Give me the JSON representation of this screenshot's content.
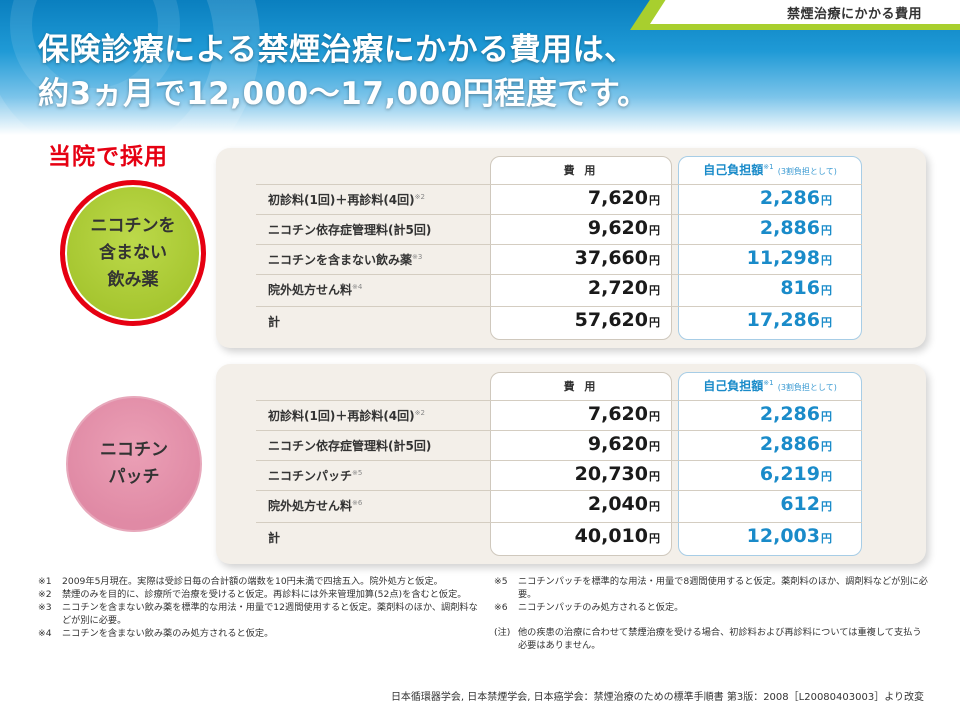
{
  "header": {
    "tag": "禁煙治療にかかる費用",
    "title_line1": "保険診療による禁煙治療にかかる費用は、",
    "title_line2": "約3ヵ月で12,000～17,000円程度です。"
  },
  "adopted_label": "当院で採用",
  "colors": {
    "accent_red": "#e60012",
    "blue": "#1a8bc9",
    "green": "#a6c630",
    "pink": "#e08aa5"
  },
  "tables": [
    {
      "circle_label": "ニコチンを\n含まない\n飲み薬",
      "header_cost": "費 用",
      "header_self": "自己負担額",
      "header_self_note_mark": "※1",
      "header_self_note": "(3割負担として)",
      "unit": "円",
      "rows": [
        {
          "label": "初診料(1回)＋再診料(4回)",
          "note": "※2",
          "cost": "7,620",
          "self": "2,286"
        },
        {
          "label": "ニコチン依存症管理料(計5回)",
          "note": "",
          "cost": "9,620",
          "self": "2,886"
        },
        {
          "label": "ニコチンを含まない飲み薬",
          "note": "※3",
          "cost": "37,660",
          "self": "11,298"
        },
        {
          "label": "院外処方せん料",
          "note": "※4",
          "cost": "2,720",
          "self": "816"
        },
        {
          "label": "計",
          "note": "",
          "cost": "57,620",
          "self": "17,286"
        }
      ]
    },
    {
      "circle_label": "ニコチン\nパッチ",
      "header_cost": "費 用",
      "header_self": "自己負担額",
      "header_self_note_mark": "※1",
      "header_self_note": "(3割負担として)",
      "unit": "円",
      "rows": [
        {
          "label": "初診料(1回)＋再診料(4回)",
          "note": "※2",
          "cost": "7,620",
          "self": "2,286"
        },
        {
          "label": "ニコチン依存症管理料(計5回)",
          "note": "",
          "cost": "9,620",
          "self": "2,886"
        },
        {
          "label": "ニコチンパッチ",
          "note": "※5",
          "cost": "20,730",
          "self": "6,219"
        },
        {
          "label": "院外処方せん料",
          "note": "※6",
          "cost": "2,040",
          "self": "612"
        },
        {
          "label": "計",
          "note": "",
          "cost": "40,010",
          "self": "12,003"
        }
      ]
    }
  ],
  "notes_left": [
    {
      "mark": "※1",
      "text": "2009年5月現在。実際は受診日毎の合計額の端数を10円未満で四捨五入。院外処方と仮定。"
    },
    {
      "mark": "※2",
      "text": "禁煙のみを目的に、診療所で治療を受けると仮定。再診料には外来管理加算(52点)を含むと仮定。"
    },
    {
      "mark": "※3",
      "text": "ニコチンを含まない飲み薬を標準的な用法・用量で12週間使用すると仮定。薬剤料のほか、調剤料などが別に必要。"
    },
    {
      "mark": "※4",
      "text": "ニコチンを含まない飲み薬のみ処方されると仮定。"
    }
  ],
  "notes_right": [
    {
      "mark": "※5",
      "text": "ニコチンパッチを標準的な用法・用量で8週間使用すると仮定。薬剤料のほか、調剤料などが別に必要。"
    },
    {
      "mark": "※6",
      "text": "ニコチンパッチのみ処方されると仮定。"
    },
    {
      "mark": "(注)",
      "text": "他の疾患の治療に合わせて禁煙治療を受ける場合、初診料および再診料については重複して支払う必要はありません。"
    }
  ],
  "source": "日本循環器学会, 日本禁煙学会, 日本癌学会：禁煙治療のための標準手順書 第3版：2008［L20080403003］より改変"
}
